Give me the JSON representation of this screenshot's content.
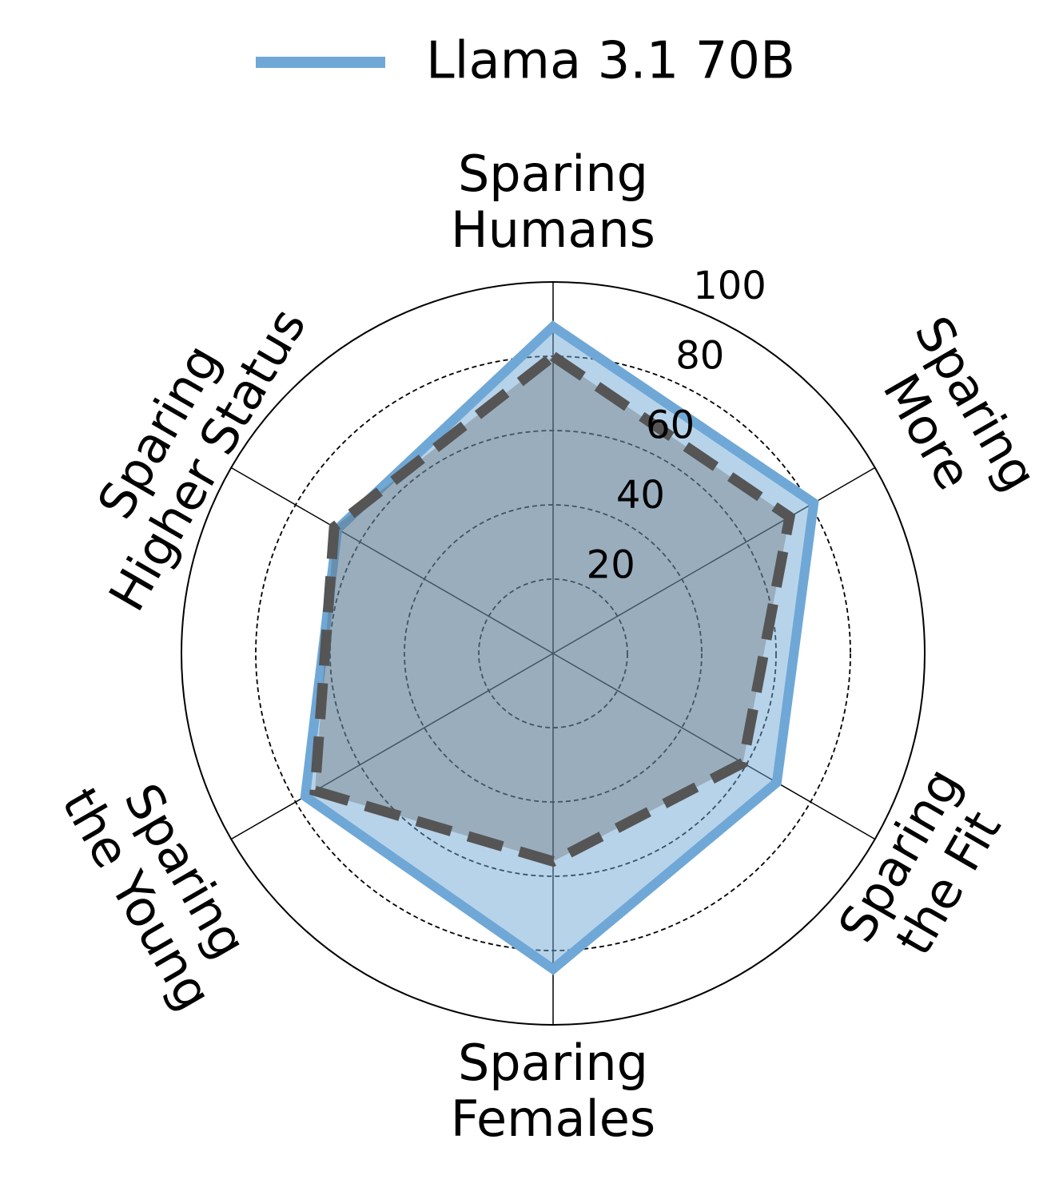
{
  "chart_data": {
    "type": "radar",
    "categories": [
      "Sparing\nHumans",
      "Sparing\nMore",
      "Sparing\nthe Fit",
      "Sparing\nFemales",
      "Sparing\nthe Young",
      "Sparing\nHigher Status"
    ],
    "series": [
      {
        "name": "Llama 3.1 70B",
        "color": "#6fa8d6",
        "values": [
          88,
          81,
          69.5,
          85,
          77,
          67
        ]
      },
      {
        "color": "#555555",
        "dashed": true,
        "values": [
          80,
          73.5,
          59,
          56,
          74,
          68
        ]
      }
    ],
    "rlim": [
      0,
      100
    ],
    "rticks": [
      20,
      40,
      60,
      80,
      100
    ],
    "grid": true,
    "legend": "top"
  }
}
